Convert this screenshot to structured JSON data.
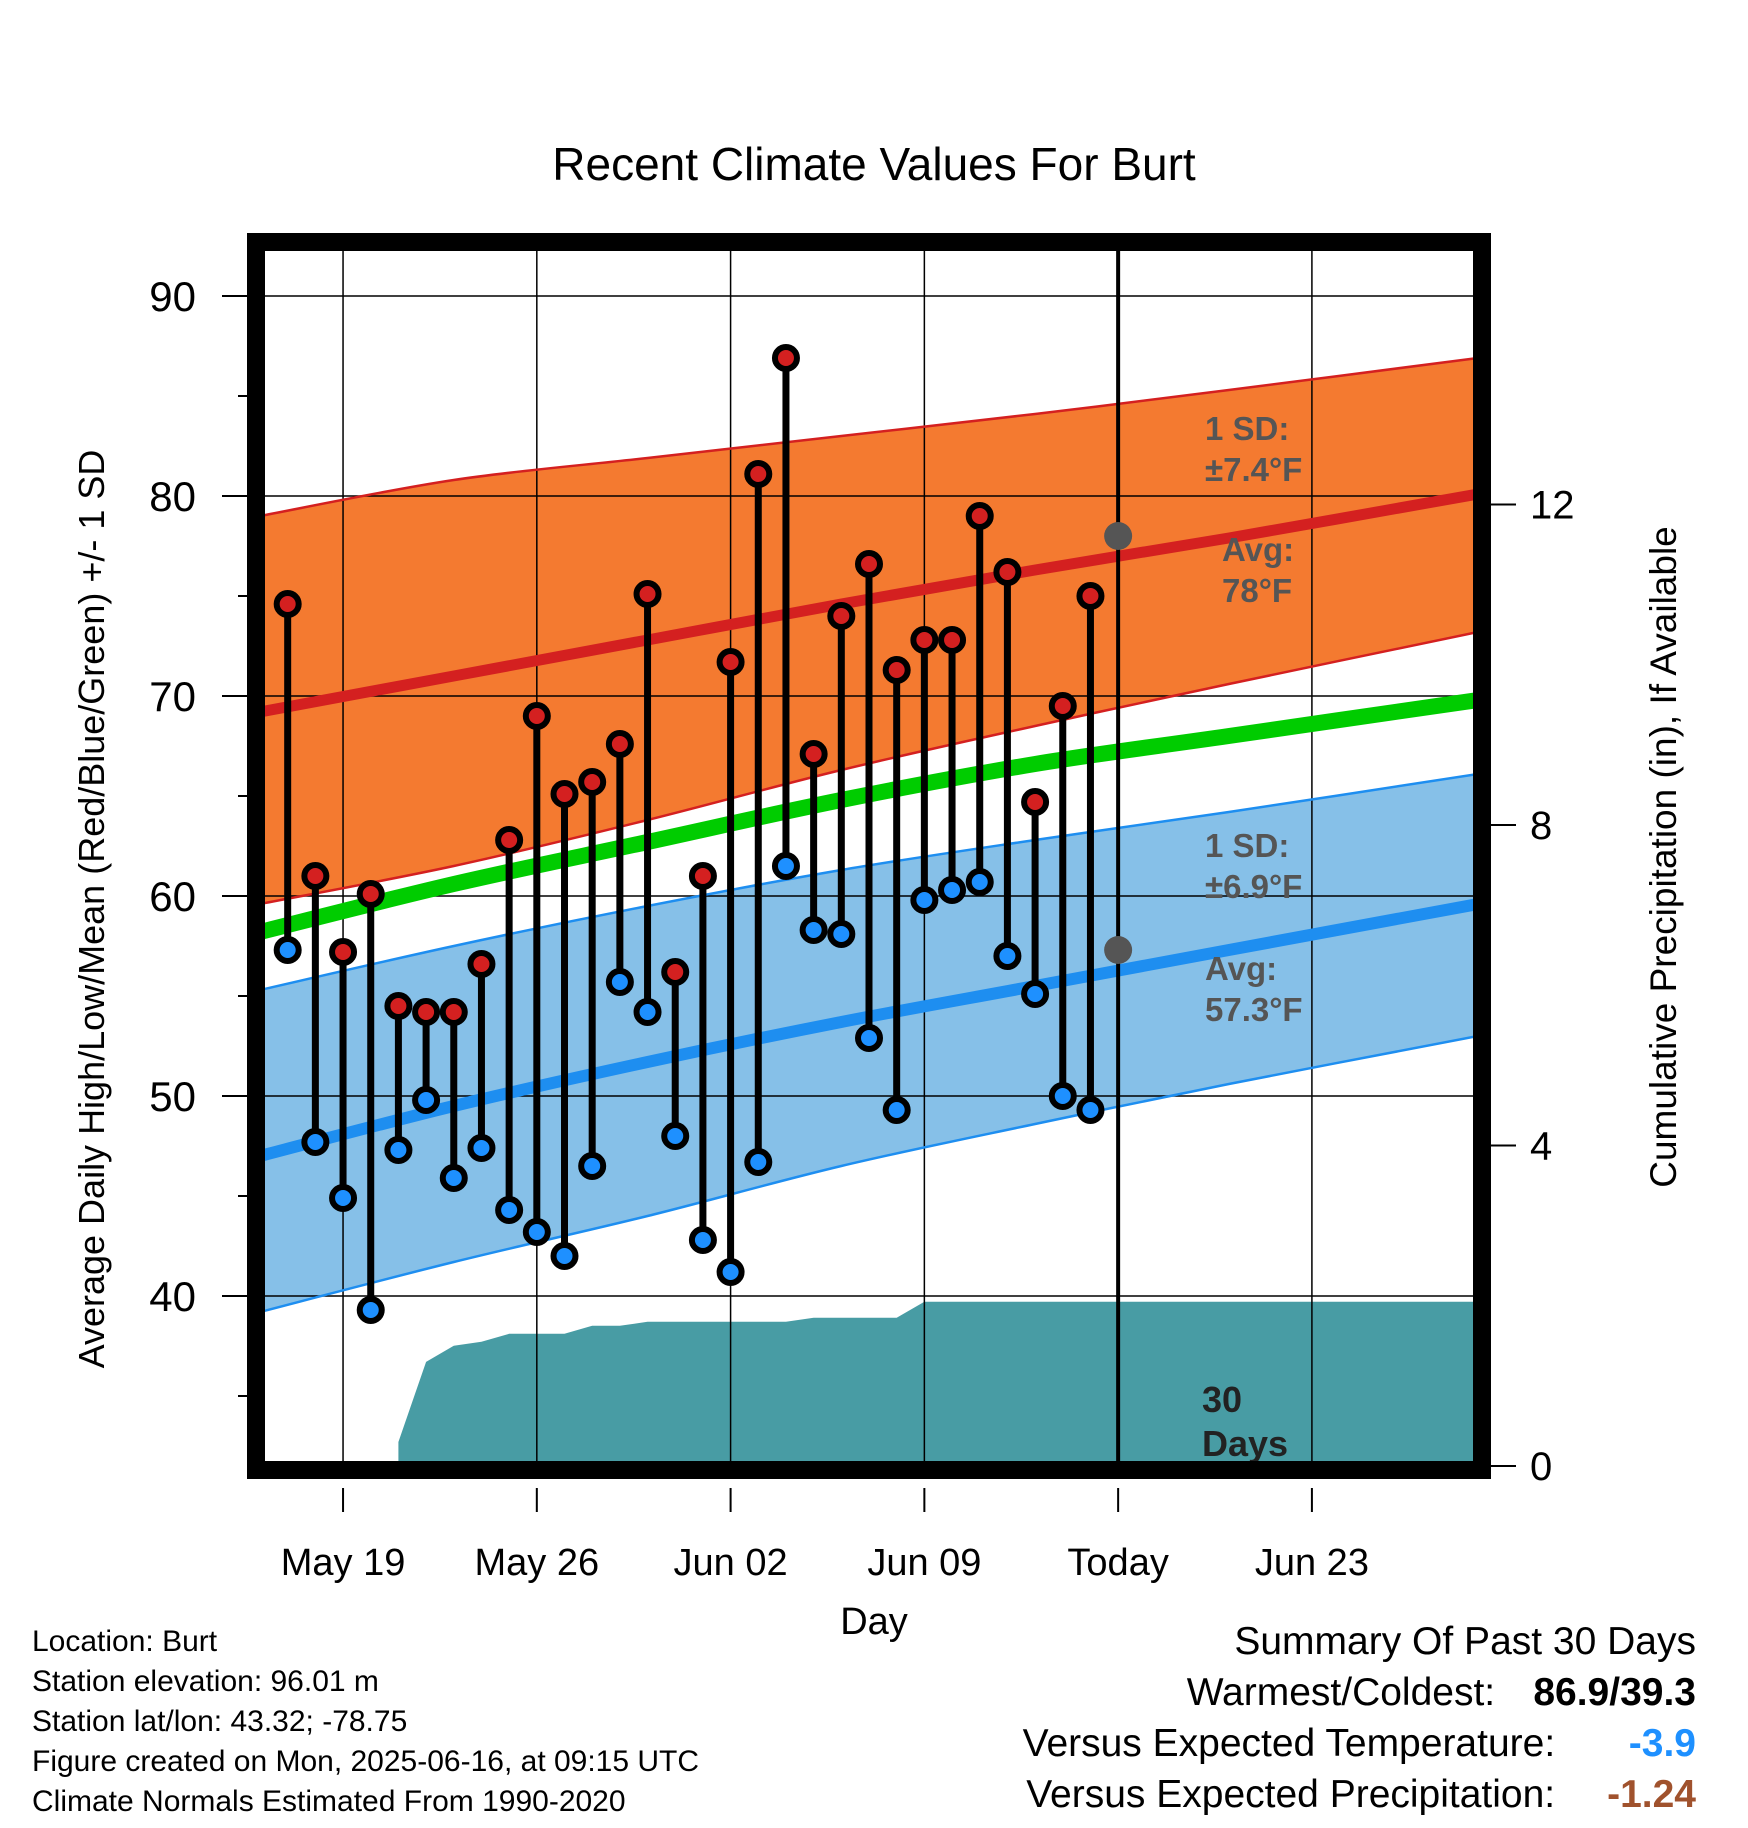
{
  "info": {
    "location": "Location: Burt",
    "elevation": "Station elevation: 96.01 m",
    "latlon": "Station lat/lon: 43.32; -78.75",
    "created": "Figure created on Mon, 2025-06-16, at 09:15 UTC",
    "normals": "Climate Normals Estimated From 1990-2020"
  },
  "summary": {
    "title": "Summary Of Past 30 Days",
    "warmest_label": "Warmest/Coldest:",
    "warmest_value": "86.9/39.3",
    "temp_label": "Versus Expected Temperature:",
    "temp_value": "-3.9",
    "temp_color": "#1e90ff",
    "precip_label": "Versus Expected Precipitation:",
    "precip_value": "-1.24",
    "precip_color": "#a0522d"
  },
  "chart_data": {
    "type": "line",
    "title": "Recent Climate Values For Burt",
    "xlabel": "Day",
    "ylabel": "Average Daily High/Low/Mean (Red/Blue/Green) +/- 1 SD",
    "y2label": "Cumulative Precipitation (in), If Available",
    "ylim": [
      31.5,
      92.5
    ],
    "y_ticks": [
      40,
      50,
      60,
      70,
      80,
      90
    ],
    "y2_ticks": [
      0,
      4,
      8,
      12
    ],
    "y2_ratio": 0.2496,
    "x_range": [
      "2025-05-16",
      "2025-06-29"
    ],
    "x_ticks": [
      {
        "date": "2025-05-19",
        "label": "May 19"
      },
      {
        "date": "2025-05-26",
        "label": "May 26"
      },
      {
        "date": "2025-06-02",
        "label": "Jun 02"
      },
      {
        "date": "2025-06-09",
        "label": "Jun 09"
      },
      {
        "date": "2025-06-16",
        "label": "Today"
      },
      {
        "date": "2025-06-23",
        "label": "Jun 23"
      }
    ],
    "today": "2025-06-16",
    "colors": {
      "high_band": "#f47a30",
      "high_line": "#d42020",
      "mean_line": "#00cc00",
      "low_band": "#86c0e8",
      "low_line": "#1e8ef0",
      "precip": "#489ca4",
      "high_dot": "#d42020",
      "low_dot": "#1e90ff",
      "avg_marker": "#555555"
    },
    "normals": {
      "x": [
        "2025-05-16",
        "2025-05-23",
        "2025-05-30",
        "2025-06-06",
        "2025-06-13",
        "2025-06-20",
        "2025-06-29"
      ],
      "high_mean": [
        69.2,
        71.0,
        72.8,
        74.6,
        76.3,
        77.9,
        80.1
      ],
      "high_upper": [
        79.0,
        80.8,
        81.9,
        83.0,
        84.1,
        85.3,
        86.9
      ],
      "high_lower": [
        59.6,
        61.5,
        63.8,
        66.3,
        68.5,
        70.6,
        73.2
      ],
      "mean": [
        58.2,
        60.6,
        62.7,
        64.8,
        66.6,
        68.0,
        69.8
      ],
      "low_mean": [
        47.0,
        49.5,
        51.7,
        53.7,
        55.5,
        57.3,
        59.6
      ],
      "low_upper": [
        55.3,
        57.5,
        59.5,
        61.3,
        62.8,
        64.2,
        66.1
      ],
      "low_lower": [
        39.2,
        41.7,
        44.0,
        46.5,
        48.6,
        50.6,
        53.0
      ]
    },
    "series": [
      {
        "name": "High",
        "x": [
          "2025-05-17",
          "2025-05-18",
          "2025-05-19",
          "2025-05-20",
          "2025-05-21",
          "2025-05-22",
          "2025-05-23",
          "2025-05-24",
          "2025-05-25",
          "2025-05-26",
          "2025-05-27",
          "2025-05-28",
          "2025-05-29",
          "2025-05-30",
          "2025-05-31",
          "2025-06-01",
          "2025-06-02",
          "2025-06-03",
          "2025-06-04",
          "2025-06-05",
          "2025-06-06",
          "2025-06-07",
          "2025-06-08",
          "2025-06-09",
          "2025-06-10",
          "2025-06-11",
          "2025-06-12",
          "2025-06-13",
          "2025-06-14",
          "2025-06-15"
        ],
        "values": [
          74.6,
          61.0,
          57.2,
          60.1,
          54.5,
          54.2,
          54.2,
          56.6,
          62.8,
          69.0,
          65.1,
          65.7,
          67.6,
          75.1,
          56.2,
          61.0,
          71.7,
          81.1,
          86.9,
          67.1,
          74.0,
          76.6,
          71.3,
          72.8,
          72.8,
          79.0,
          76.2,
          64.7,
          69.5,
          75.0
        ]
      },
      {
        "name": "Low",
        "x": [
          "2025-05-17",
          "2025-05-18",
          "2025-05-19",
          "2025-05-20",
          "2025-05-21",
          "2025-05-22",
          "2025-05-23",
          "2025-05-24",
          "2025-05-25",
          "2025-05-26",
          "2025-05-27",
          "2025-05-28",
          "2025-05-29",
          "2025-05-30",
          "2025-05-31",
          "2025-06-01",
          "2025-06-02",
          "2025-06-03",
          "2025-06-04",
          "2025-06-05",
          "2025-06-06",
          "2025-06-07",
          "2025-06-08",
          "2025-06-09",
          "2025-06-10",
          "2025-06-11",
          "2025-06-12",
          "2025-06-13",
          "2025-06-14",
          "2025-06-15"
        ],
        "values": [
          57.3,
          47.7,
          44.9,
          39.3,
          47.3,
          49.8,
          45.9,
          47.4,
          44.3,
          43.2,
          42.0,
          46.5,
          55.7,
          54.2,
          48.0,
          42.8,
          41.2,
          46.7,
          61.5,
          58.3,
          58.1,
          52.9,
          49.3,
          59.8,
          60.3,
          60.7,
          57.0,
          55.1,
          50.0,
          49.3
        ]
      }
    ],
    "precip": {
      "x": [
        "2025-05-16",
        "2025-05-17",
        "2025-05-18",
        "2025-05-19",
        "2025-05-20",
        "2025-05-21",
        "2025-05-21",
        "2025-05-22",
        "2025-05-23",
        "2025-05-24",
        "2025-05-25",
        "2025-05-26",
        "2025-05-27",
        "2025-05-28",
        "2025-05-29",
        "2025-05-30",
        "2025-05-31",
        "2025-06-01",
        "2025-06-02",
        "2025-06-03",
        "2025-06-04",
        "2025-06-05",
        "2025-06-06",
        "2025-06-07",
        "2025-06-08",
        "2025-06-09",
        "2025-06-10",
        "2025-06-16",
        "2025-06-29"
      ],
      "values": [
        0,
        0,
        0,
        0,
        0,
        0,
        0.3,
        1.3,
        1.5,
        1.55,
        1.65,
        1.65,
        1.65,
        1.75,
        1.75,
        1.8,
        1.8,
        1.8,
        1.8,
        1.8,
        1.8,
        1.85,
        1.85,
        1.85,
        1.85,
        2.05,
        2.05,
        2.05,
        2.05
      ]
    },
    "annotations": {
      "high_sd": [
        "1 SD:",
        "±7.4°F"
      ],
      "high_avg": [
        "Avg:",
        "78°F"
      ],
      "low_sd": [
        "1 SD:",
        "±6.9°F"
      ],
      "low_avg": [
        "Avg:",
        "57.3°F"
      ],
      "precip_days": [
        "30",
        "Days"
      ],
      "high_avg_value": 78.0,
      "low_avg_value": 57.3
    }
  }
}
